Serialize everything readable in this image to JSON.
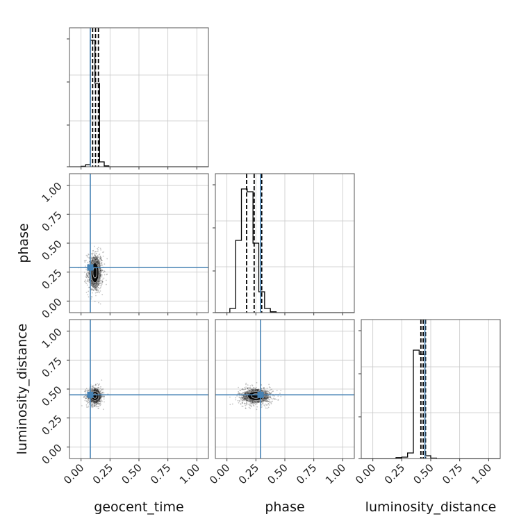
{
  "chart_data": {
    "type": "corner",
    "parameters": [
      "geocent_time",
      "phase",
      "luminosity_distance"
    ],
    "axis_range": [
      -0.1,
      1.1
    ],
    "tick_values": [
      0.0,
      0.25,
      0.5,
      0.75,
      1.0
    ],
    "tick_labels": [
      "0.00",
      "0.25",
      "0.50",
      "0.75",
      "1.00"
    ],
    "grid": true,
    "injection_color": "#4682b4",
    "hist_color": "#000000",
    "truths": {
      "geocent_time": 0.08,
      "phase": 0.29,
      "luminosity_distance": 0.45
    },
    "histograms": [
      {
        "parameter": "geocent_time",
        "bin_edges": [
          0.0,
          0.04,
          0.08,
          0.12,
          0.16,
          0.2,
          0.24
        ],
        "counts": [
          0.003,
          0.015,
          0.91,
          0.6,
          0.035,
          0.006
        ],
        "quantiles": [
          0.1,
          0.125,
          0.15
        ]
      },
      {
        "parameter": "phase",
        "bin_edges": [
          0.025,
          0.075,
          0.125,
          0.175,
          0.225,
          0.275,
          0.325,
          0.375,
          0.425,
          0.475
        ],
        "counts": [
          0.03,
          0.52,
          0.89,
          0.87,
          0.5,
          0.15,
          0.03,
          0.006,
          0
        ],
        "quantiles": [
          0.17,
          0.235,
          0.3
        ]
      },
      {
        "parameter": "luminosity_distance",
        "bin_edges": [
          0.2,
          0.25,
          0.3,
          0.35,
          0.4,
          0.45,
          0.5,
          0.55
        ],
        "counts": [
          0.006,
          0.01,
          0.04,
          0.78,
          0.75,
          0.02,
          0.003
        ],
        "quantiles": [
          0.415,
          0.435,
          0.455
        ]
      }
    ],
    "scatter_panels": [
      {
        "x": "geocent_time",
        "y": "phase",
        "center": [
          0.12,
          0.245
        ],
        "spread": [
          0.035,
          0.09
        ]
      },
      {
        "x": "geocent_time",
        "y": "luminosity_distance",
        "center": [
          0.12,
          0.44
        ],
        "spread": [
          0.035,
          0.04
        ]
      },
      {
        "x": "phase",
        "y": "luminosity_distance",
        "center": [
          0.25,
          0.44
        ],
        "spread": [
          0.075,
          0.04
        ]
      }
    ]
  }
}
